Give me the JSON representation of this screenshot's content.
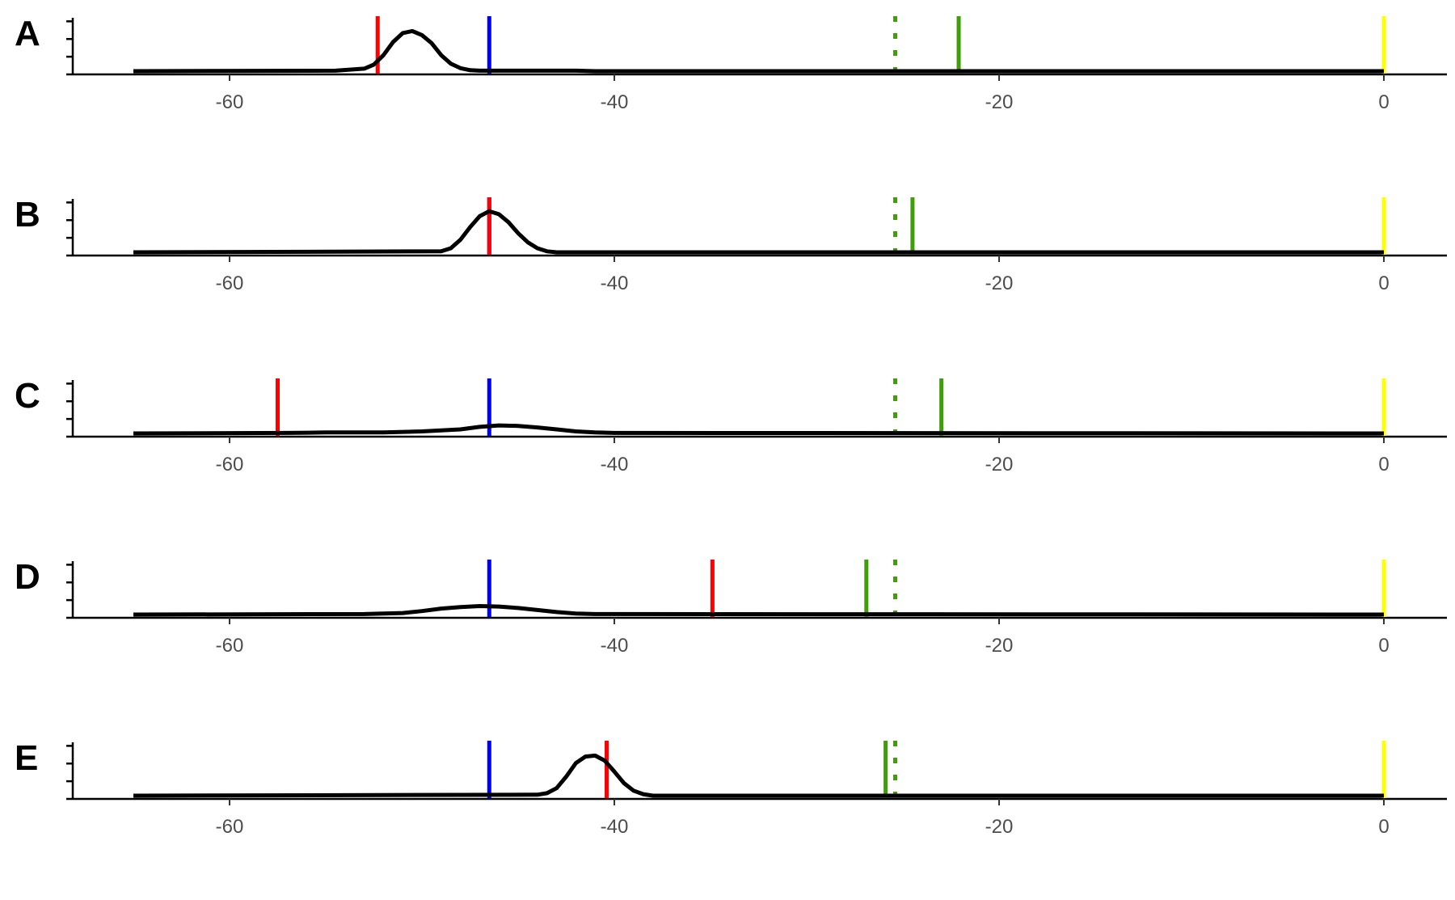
{
  "chart_data": [
    {
      "type": "line",
      "panel_label": "A",
      "xlim": [
        -70,
        3
      ],
      "x_ticks": [
        -60,
        -40,
        -20,
        0
      ],
      "x_tick_labels": [
        "-60",
        "-40",
        "-20",
        "0"
      ],
      "density": {
        "x": [
          -65,
          -54.5,
          -53,
          -52.5,
          -52,
          -51.5,
          -51,
          -50.5,
          -50,
          -49.5,
          -49,
          -48.5,
          -48,
          -47.5,
          -47,
          -42,
          -41,
          -20,
          0
        ],
        "y": [
          0.0,
          0.01,
          0.05,
          0.13,
          0.32,
          0.58,
          0.76,
          0.8,
          0.72,
          0.56,
          0.32,
          0.15,
          0.06,
          0.02,
          0.01,
          0.01,
          0.0,
          0.0,
          0.0
        ]
      },
      "reference_lines": [
        {
          "color": "#ff0000",
          "x": -52.3,
          "style": "solid"
        },
        {
          "color": "#0000ff",
          "x": -46.5,
          "style": "solid"
        },
        {
          "color": "#3f9f0a",
          "x": -25.4,
          "style": "dotted"
        },
        {
          "color": "#3f9f0a",
          "x": -22.1,
          "style": "solid"
        },
        {
          "color": "#ffff00",
          "x": 0,
          "style": "solid"
        }
      ]
    },
    {
      "type": "line",
      "panel_label": "B",
      "xlim": [
        -70,
        3
      ],
      "x_ticks": [
        -60,
        -40,
        -20,
        0
      ],
      "x_tick_labels": [
        "-60",
        "-40",
        "-20",
        "0"
      ],
      "density": {
        "x": [
          -65,
          -49,
          -48.5,
          -48,
          -47.5,
          -47,
          -46.5,
          -46,
          -45.5,
          -45,
          -44.5,
          -44,
          -43.5,
          -43,
          0
        ],
        "y": [
          0.0,
          0.02,
          0.08,
          0.25,
          0.5,
          0.72,
          0.82,
          0.76,
          0.6,
          0.38,
          0.2,
          0.08,
          0.02,
          0.0,
          0.0
        ]
      },
      "reference_lines": [
        {
          "color": "#0000ff",
          "x": -46.5,
          "style": "solid"
        },
        {
          "color": "#ff0000",
          "x": -46.5,
          "style": "solid"
        },
        {
          "color": "#3f9f0a",
          "x": -25.4,
          "style": "dotted"
        },
        {
          "color": "#3f9f0a",
          "x": -24.5,
          "style": "solid"
        },
        {
          "color": "#ffff00",
          "x": 0,
          "style": "solid"
        }
      ]
    },
    {
      "type": "line",
      "panel_label": "C",
      "xlim": [
        -70,
        3
      ],
      "x_ticks": [
        -60,
        -40,
        -20,
        0
      ],
      "x_tick_labels": [
        "-60",
        "-40",
        "-20",
        "0"
      ],
      "density": {
        "x": [
          -65,
          -57,
          -55,
          -52,
          -50,
          -48,
          -47,
          -46,
          -45,
          -44,
          -43,
          -42,
          -41,
          -40,
          0
        ],
        "y": [
          0.0,
          0.01,
          0.02,
          0.02,
          0.04,
          0.08,
          0.13,
          0.16,
          0.15,
          0.12,
          0.08,
          0.04,
          0.02,
          0.01,
          0.0
        ]
      },
      "reference_lines": [
        {
          "color": "#ff0000",
          "x": -57.5,
          "style": "solid"
        },
        {
          "color": "#0000ff",
          "x": -46.5,
          "style": "solid"
        },
        {
          "color": "#3f9f0a",
          "x": -25.4,
          "style": "dotted"
        },
        {
          "color": "#3f9f0a",
          "x": -23,
          "style": "solid"
        },
        {
          "color": "#ffff00",
          "x": 0,
          "style": "solid"
        }
      ]
    },
    {
      "type": "line",
      "panel_label": "D",
      "xlim": [
        -70,
        3
      ],
      "x_ticks": [
        -60,
        -40,
        -20,
        0
      ],
      "x_tick_labels": [
        "-60",
        "-40",
        "-20",
        "0"
      ],
      "density": {
        "x": [
          -65,
          -53,
          -51,
          -50,
          -49,
          -48,
          -47,
          -46,
          -45,
          -44,
          -43,
          -42,
          -41,
          0
        ],
        "y": [
          0.0,
          0.01,
          0.03,
          0.07,
          0.12,
          0.15,
          0.17,
          0.16,
          0.13,
          0.09,
          0.05,
          0.02,
          0.01,
          0.0
        ]
      },
      "reference_lines": [
        {
          "color": "#0000ff",
          "x": -46.5,
          "style": "solid"
        },
        {
          "color": "#ff0000",
          "x": -34.9,
          "style": "solid"
        },
        {
          "color": "#3f9f0a",
          "x": -26.9,
          "style": "solid"
        },
        {
          "color": "#3f9f0a",
          "x": -25.4,
          "style": "dotted"
        },
        {
          "color": "#ffff00",
          "x": 0,
          "style": "solid"
        }
      ]
    },
    {
      "type": "line",
      "panel_label": "E",
      "xlim": [
        -70,
        3
      ],
      "x_ticks": [
        -60,
        -40,
        -20,
        0
      ],
      "x_tick_labels": [
        "-60",
        "-40",
        "-20",
        "0"
      ],
      "density": {
        "x": [
          -65,
          -44,
          -43.5,
          -43,
          -42.5,
          -42,
          -41.5,
          -41,
          -40.5,
          -40,
          -39.5,
          -39,
          -38.5,
          -38,
          0
        ],
        "y": [
          0.0,
          0.02,
          0.05,
          0.15,
          0.38,
          0.65,
          0.78,
          0.8,
          0.7,
          0.48,
          0.25,
          0.1,
          0.03,
          0.0,
          0.0
        ]
      },
      "reference_lines": [
        {
          "color": "#0000ff",
          "x": -46.5,
          "style": "solid"
        },
        {
          "color": "#ff0000",
          "x": -40.4,
          "style": "solid"
        },
        {
          "color": "#3f9f0a",
          "x": -25.9,
          "style": "solid"
        },
        {
          "color": "#3f9f0a",
          "x": -25.4,
          "style": "dotted"
        },
        {
          "color": "#ffff00",
          "x": 0,
          "style": "solid"
        }
      ]
    }
  ]
}
